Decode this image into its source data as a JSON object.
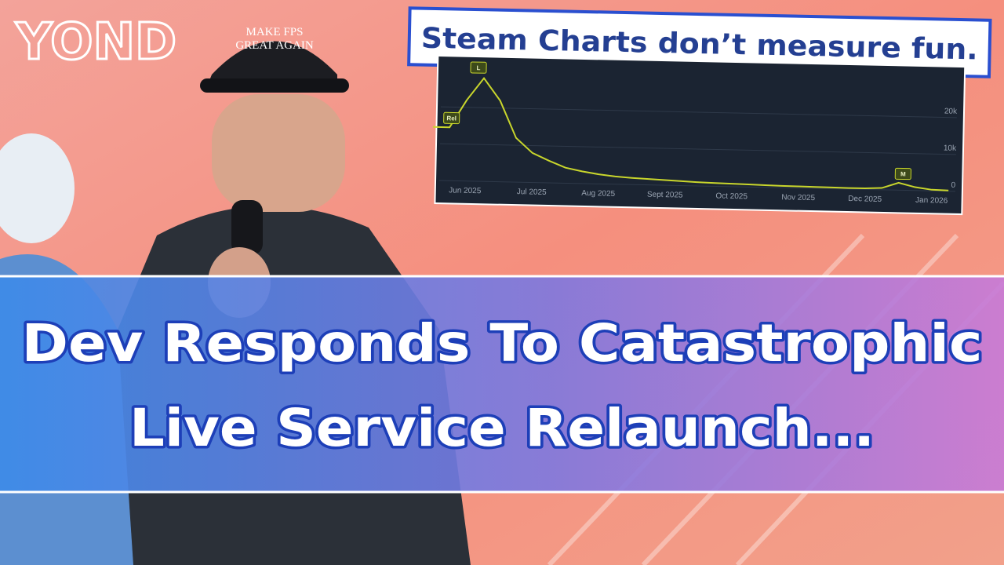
{
  "logo": "YOND",
  "hat_text": [
    "MAKE FPS",
    "GREAT AGAIN"
  ],
  "caption": "Steam Charts don’t measure fun.",
  "headline": [
    "Dev Responds To Catastrophic",
    "Live Service Relaunch..."
  ],
  "chart_data": {
    "type": "line",
    "categories": [
      null,
      null,
      "Jun 2025",
      null,
      null,
      null,
      "Jul 2025",
      null,
      null,
      null,
      "Aug 2025",
      null,
      null,
      null,
      "Sept 2025",
      null,
      null,
      null,
      "Oct 2025",
      null,
      null,
      null,
      "Nov 2025",
      null,
      null,
      null,
      "Dec 2025",
      null,
      null,
      null,
      "Jan 2026",
      null
    ],
    "values": [
      14500,
      14500,
      22000,
      28000,
      22000,
      12000,
      8000,
      6000,
      4200,
      3300,
      2600,
      2100,
      1800,
      1600,
      1400,
      1200,
      1000,
      900,
      800,
      700,
      600,
      500,
      450,
      400,
      350,
      300,
      300,
      500,
      2000,
      900,
      300,
      200
    ],
    "color": "#c9d62c",
    "ylim": [
      -1500,
      31000
    ],
    "yticks": [
      0,
      {
        "value": 10000,
        "label": "10k"
      },
      {
        "value": 20000,
        "label": "20k"
      }
    ],
    "grid": true,
    "annotations": [
      "Rel",
      "L",
      "M"
    ]
  }
}
